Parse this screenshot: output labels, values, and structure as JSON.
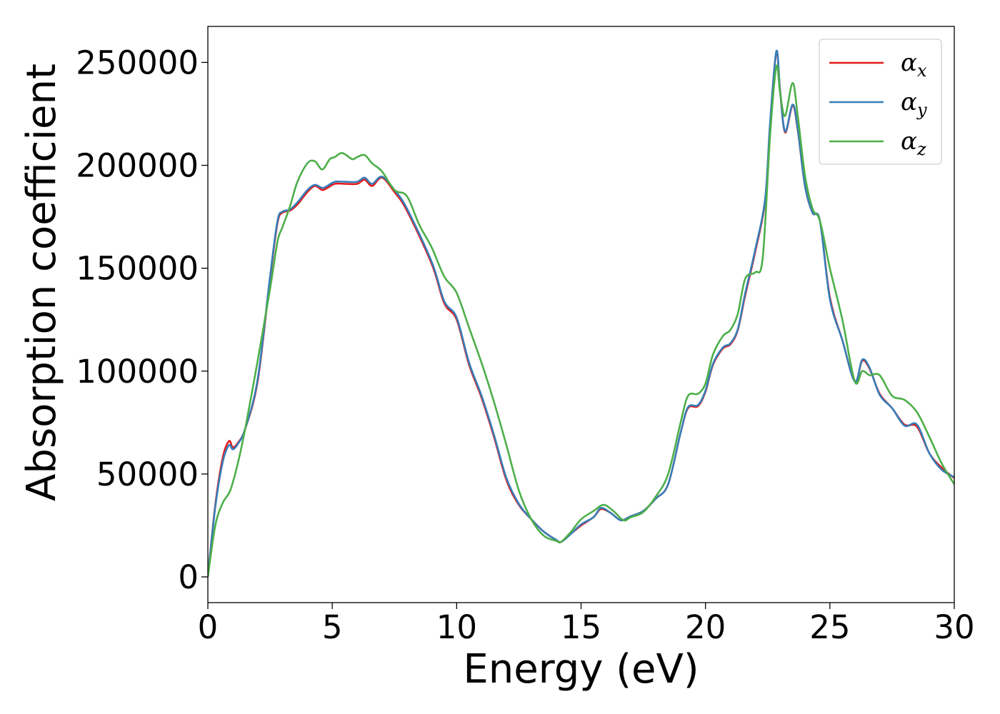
{
  "chart_data": {
    "type": "line",
    "title": "",
    "xlabel": "Energy (eV)",
    "ylabel": "Absorption coefficient",
    "xlim": [
      0,
      30
    ],
    "ylim": [
      -12500,
      267500
    ],
    "xticks": [
      0,
      5,
      10,
      15,
      20,
      25,
      30
    ],
    "xtick_labels": [
      "0",
      "5",
      "10",
      "15",
      "20",
      "25",
      "30"
    ],
    "yticks": [
      0,
      50000,
      100000,
      150000,
      200000,
      250000
    ],
    "ytick_labels": [
      "0",
      "50000",
      "100000",
      "150000",
      "200000",
      "250000"
    ],
    "grid": false,
    "legend_position": "top-right",
    "series": [
      {
        "name": "α",
        "subscript": "x",
        "color": "#e41a1c",
        "x": [
          0,
          0.3,
          0.6,
          0.85,
          1.0,
          1.2,
          1.5,
          2.0,
          2.5,
          2.8,
          3.0,
          3.3,
          3.6,
          4.0,
          4.3,
          4.6,
          4.8,
          5.1,
          5.5,
          6.0,
          6.3,
          6.6,
          7.0,
          7.5,
          8.0,
          9.0,
          9.5,
          10.0,
          10.5,
          11.0,
          11.5,
          12.0,
          12.5,
          13.0,
          13.5,
          14.0,
          14.2,
          14.6,
          15.0,
          15.5,
          15.8,
          16.2,
          16.6,
          17.0,
          17.5,
          18.0,
          18.5,
          19.0,
          19.3,
          19.7,
          20.0,
          20.3,
          20.7,
          21.0,
          21.3,
          21.6,
          22.0,
          22.4,
          22.6,
          22.85,
          23.0,
          23.2,
          23.5,
          23.7,
          24.0,
          24.3,
          24.6,
          25.0,
          25.5,
          26.0,
          26.3,
          26.6,
          27.0,
          27.5,
          28.0,
          28.5,
          29.0,
          29.5,
          30.0
        ],
        "y": [
          0,
          35000,
          58000,
          66000,
          63000,
          65000,
          72000,
          95000,
          145000,
          172000,
          177000,
          178000,
          181000,
          187000,
          190000,
          188000,
          189000,
          191000,
          191000,
          191000,
          193000,
          190000,
          194000,
          187000,
          178000,
          152000,
          133000,
          125000,
          103000,
          87000,
          68000,
          47000,
          35000,
          28000,
          22000,
          18000,
          17000,
          21000,
          25000,
          29000,
          33000,
          31000,
          27500,
          29500,
          32000,
          38000,
          45000,
          70000,
          82000,
          83000,
          90000,
          103000,
          111000,
          113000,
          120000,
          137000,
          158000,
          183000,
          220000,
          255000,
          236000,
          216000,
          229000,
          218000,
          190000,
          177000,
          173000,
          136000,
          115000,
          95000,
          105000,
          101000,
          89000,
          82000,
          74000,
          73000,
          60000,
          53000,
          48000
        ]
      },
      {
        "name": "α",
        "subscript": "y",
        "color": "#377eb8",
        "x": [
          0,
          0.3,
          0.6,
          0.85,
          1.0,
          1.2,
          1.5,
          2.0,
          2.5,
          2.8,
          3.0,
          3.3,
          3.6,
          4.0,
          4.3,
          4.6,
          4.8,
          5.1,
          5.5,
          6.0,
          6.3,
          6.6,
          7.0,
          7.5,
          8.0,
          9.0,
          9.5,
          10.0,
          10.5,
          11.0,
          11.5,
          12.0,
          12.5,
          13.0,
          13.5,
          14.0,
          14.2,
          14.6,
          15.0,
          15.5,
          15.8,
          16.2,
          16.6,
          17.0,
          17.5,
          18.0,
          18.5,
          19.0,
          19.3,
          19.7,
          20.0,
          20.3,
          20.7,
          21.0,
          21.3,
          21.6,
          22.0,
          22.4,
          22.6,
          22.85,
          23.0,
          23.2,
          23.5,
          23.7,
          24.0,
          24.3,
          24.6,
          25.0,
          25.5,
          26.0,
          26.3,
          26.6,
          27.0,
          27.5,
          28.0,
          28.5,
          29.0,
          29.5,
          30.0
        ],
        "y": [
          0,
          34000,
          56000,
          64000,
          62000,
          64500,
          72000,
          96000,
          146000,
          173000,
          177500,
          178500,
          182000,
          188000,
          190500,
          189000,
          190000,
          192000,
          192000,
          192000,
          194000,
          191000,
          194500,
          188000,
          179000,
          153000,
          134000,
          126000,
          104000,
          88000,
          69000,
          48000,
          35500,
          28000,
          22000,
          18000,
          17000,
          21000,
          25500,
          29000,
          33500,
          31000,
          27500,
          29500,
          32000,
          38000,
          45000,
          70000,
          82500,
          83500,
          90500,
          103500,
          111500,
          113500,
          120500,
          138000,
          159000,
          184000,
          221000,
          255500,
          236000,
          216500,
          229500,
          218500,
          190000,
          177000,
          173000,
          135000,
          115000,
          95000,
          105500,
          101500,
          88500,
          82000,
          73500,
          74000,
          60000,
          52000,
          48500
        ]
      },
      {
        "name": "α",
        "subscript": "z",
        "color": "#4daf4a",
        "x": [
          0,
          0.3,
          0.6,
          0.9,
          1.2,
          1.5,
          2.0,
          2.5,
          2.8,
          3.0,
          3.3,
          3.6,
          4.0,
          4.3,
          4.6,
          4.9,
          5.1,
          5.4,
          5.8,
          6.0,
          6.3,
          6.6,
          7.0,
          7.5,
          8.0,
          8.5,
          9.0,
          9.5,
          10.0,
          10.5,
          11.0,
          11.5,
          12.0,
          12.5,
          13.0,
          13.5,
          14.0,
          14.2,
          14.6,
          15.0,
          15.5,
          15.9,
          16.3,
          16.7,
          17.0,
          17.5,
          18.0,
          18.5,
          19.0,
          19.3,
          19.7,
          20.0,
          20.3,
          20.7,
          21.0,
          21.3,
          21.6,
          22.0,
          22.3,
          22.6,
          22.85,
          23.0,
          23.2,
          23.5,
          23.7,
          24.0,
          24.3,
          24.6,
          25.0,
          25.5,
          26.0,
          26.3,
          26.6,
          27.0,
          27.5,
          28.0,
          28.5,
          29.0,
          29.5,
          30.0
        ],
        "y": [
          0,
          25000,
          36000,
          42000,
          55000,
          72000,
          105000,
          140000,
          163000,
          170000,
          180000,
          192000,
          201000,
          202000,
          198000,
          203000,
          204000,
          206000,
          203000,
          204000,
          205000,
          201000,
          197000,
          188000,
          185000,
          171000,
          160000,
          146000,
          138000,
          121000,
          104000,
          85000,
          64000,
          42000,
          28000,
          20000,
          17500,
          17000,
          22000,
          28000,
          32000,
          35000,
          32000,
          27500,
          29000,
          31500,
          39000,
          50000,
          75000,
          88000,
          89000,
          94000,
          108000,
          117000,
          120000,
          128000,
          145000,
          148000,
          155000,
          215000,
          248000,
          235000,
          224000,
          240000,
          225000,
          195000,
          179000,
          173000,
          150000,
          125000,
          95000,
          100000,
          98000,
          98000,
          88000,
          86000,
          80000,
          68000,
          55000,
          45000
        ]
      }
    ]
  }
}
